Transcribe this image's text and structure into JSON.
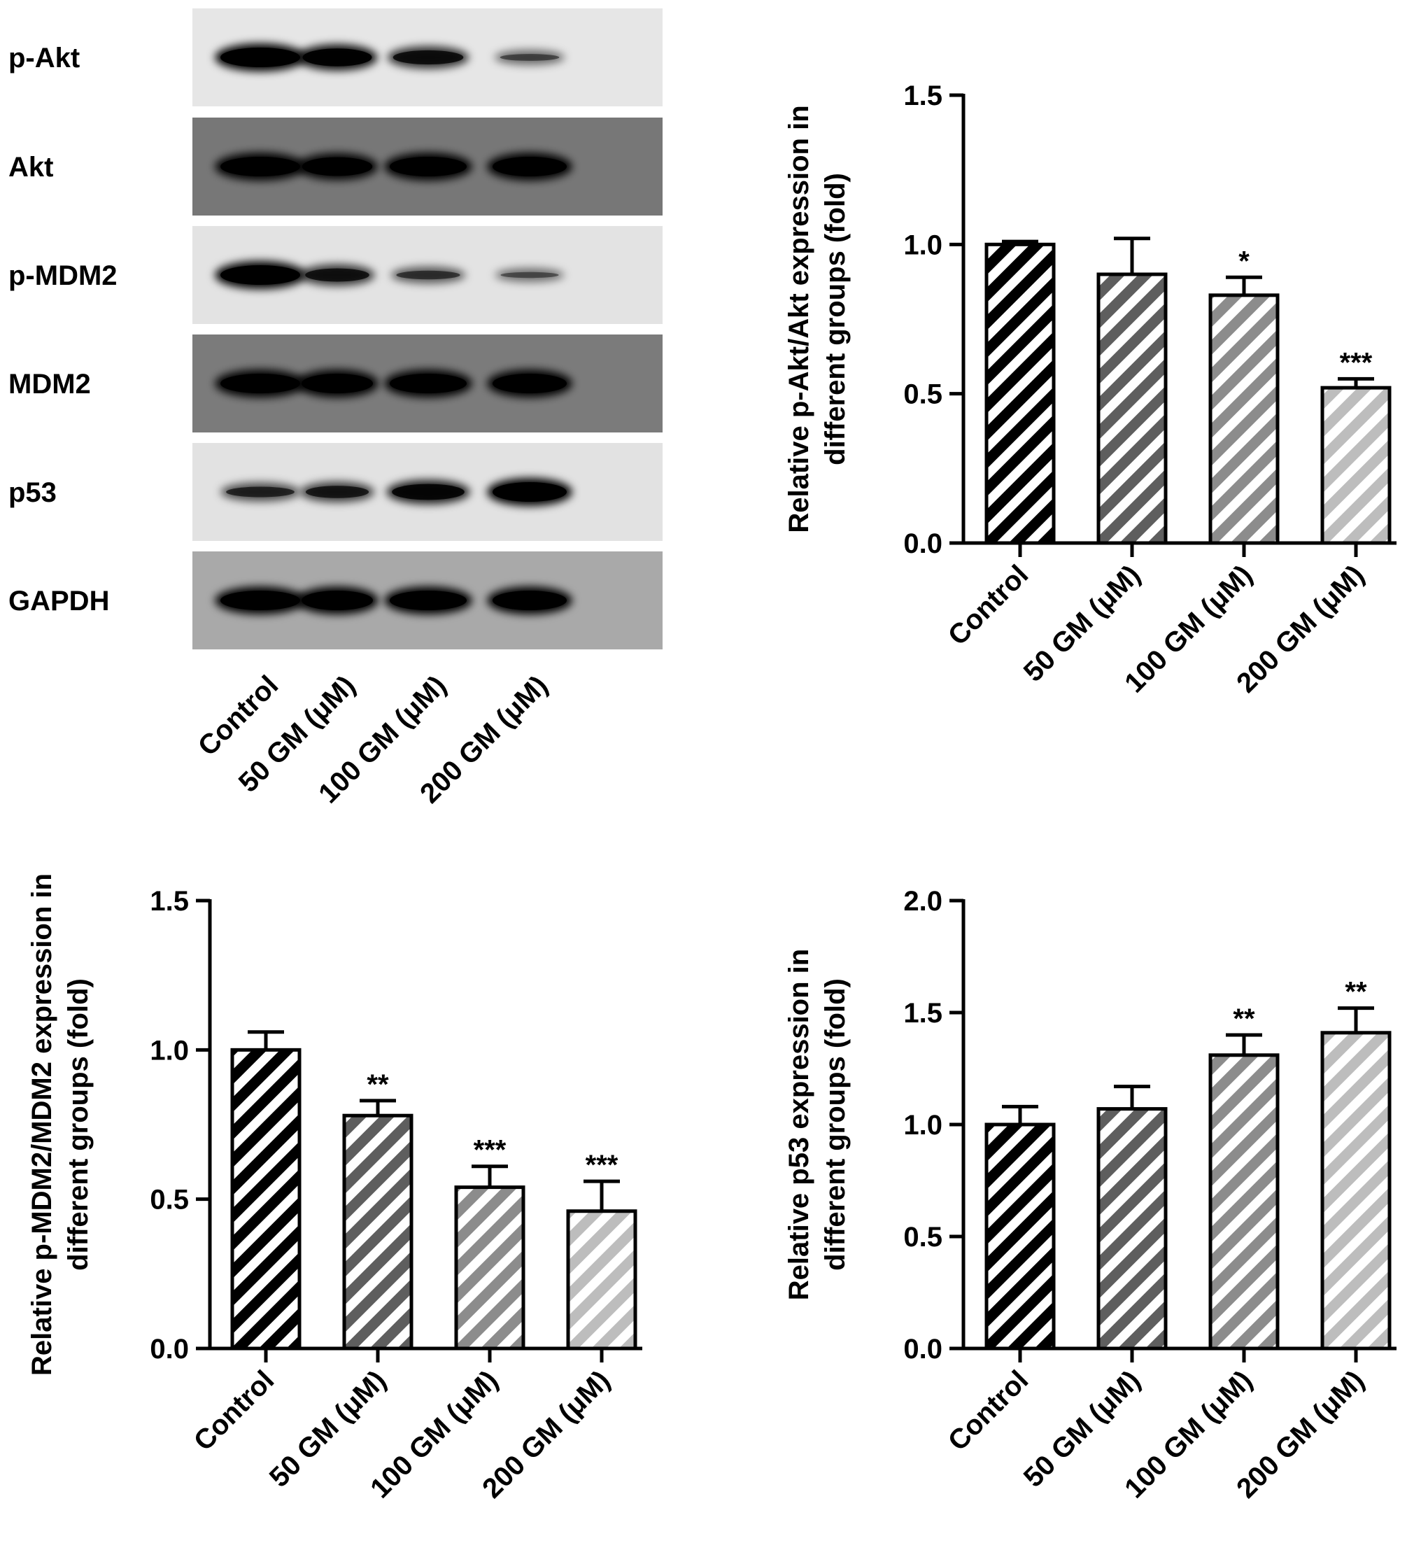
{
  "blot": {
    "lane_labels": [
      "Control",
      "50 GM (μM)",
      "100 GM (μM)",
      "200 GM (μM)"
    ],
    "rows": [
      {
        "label": "p-Akt",
        "bg": "#e6e6e6",
        "intensity": [
          1.0,
          0.9,
          0.7,
          0.3
        ]
      },
      {
        "label": "Akt",
        "bg": "#777777",
        "intensity": [
          1.0,
          0.95,
          1.0,
          1.0
        ]
      },
      {
        "label": "p-MDM2",
        "bg": "#e3e3e3",
        "intensity": [
          1.0,
          0.65,
          0.4,
          0.25
        ]
      },
      {
        "label": "MDM2",
        "bg": "#7b7b7b",
        "intensity": [
          1.0,
          1.0,
          1.0,
          1.0
        ]
      },
      {
        "label": "p53",
        "bg": "#e2e2e2",
        "intensity": [
          0.5,
          0.6,
          0.8,
          1.0
        ]
      },
      {
        "label": "GAPDH",
        "bg": "#a9a9a9",
        "intensity": [
          1.0,
          1.0,
          1.0,
          1.0
        ]
      }
    ]
  },
  "chart_data": [
    {
      "type": "bar",
      "ylabel_lines": [
        "Relative p-Akt/Akt expression in",
        "different groups (fold)"
      ],
      "categories": [
        "Control",
        "50 GM (μM)",
        "100 GM (μM)",
        "200 GM (μM)"
      ],
      "values": [
        1.0,
        0.9,
        0.83,
        0.52
      ],
      "errors": [
        0.01,
        0.12,
        0.06,
        0.03
      ],
      "significance": [
        "",
        "",
        "*",
        "***"
      ],
      "ylim": [
        0,
        1.5
      ],
      "yticks": [
        "0.0",
        "0.5",
        "1.0",
        "1.5"
      ],
      "bar_colors": [
        "#000000",
        "#5e5e5e",
        "#8c8c8c",
        "#bdbdbd"
      ]
    },
    {
      "type": "bar",
      "ylabel_lines": [
        "Relative p-MDM2/MDM2 expression in",
        "different groups (fold)"
      ],
      "categories": [
        "Control",
        "50 GM (μM)",
        "100 GM (μM)",
        "200 GM (μM)"
      ],
      "values": [
        1.0,
        0.78,
        0.54,
        0.46
      ],
      "errors": [
        0.06,
        0.05,
        0.07,
        0.1
      ],
      "significance": [
        "",
        "**",
        "***",
        "***"
      ],
      "ylim": [
        0,
        1.5
      ],
      "yticks": [
        "0.0",
        "0.5",
        "1.0",
        "1.5"
      ],
      "bar_colors": [
        "#000000",
        "#5e5e5e",
        "#8c8c8c",
        "#bdbdbd"
      ]
    },
    {
      "type": "bar",
      "ylabel_lines": [
        "Relative p53 expression in",
        "different groups (fold)"
      ],
      "categories": [
        "Control",
        "50 GM (μM)",
        "100 GM (μM)",
        "200 GM (μM)"
      ],
      "values": [
        1.0,
        1.07,
        1.31,
        1.41
      ],
      "errors": [
        0.08,
        0.1,
        0.09,
        0.11
      ],
      "significance": [
        "",
        "",
        "**",
        "**"
      ],
      "ylim": [
        0,
        2.0
      ],
      "yticks": [
        "0.0",
        "0.5",
        "1.0",
        "1.5",
        "2.0"
      ],
      "bar_colors": [
        "#000000",
        "#5e5e5e",
        "#8c8c8c",
        "#bdbdbd"
      ]
    }
  ]
}
